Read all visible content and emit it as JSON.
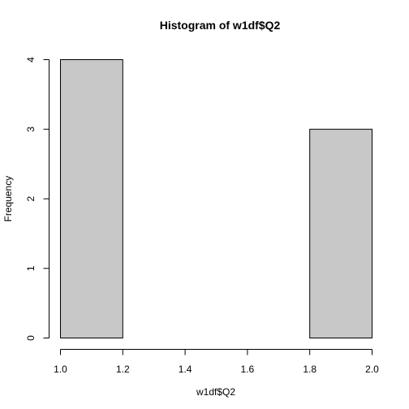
{
  "chart_data": {
    "type": "bar",
    "title": "Histogram of w1df$Q2",
    "xlabel": "w1df$Q2",
    "ylabel": "Frequency",
    "bins": [
      {
        "start": 1.0,
        "end": 1.2,
        "count": 4
      },
      {
        "start": 1.2,
        "end": 1.4,
        "count": 0
      },
      {
        "start": 1.4,
        "end": 1.6,
        "count": 0
      },
      {
        "start": 1.6,
        "end": 1.8,
        "count": 0
      },
      {
        "start": 1.8,
        "end": 2.0,
        "count": 3
      }
    ],
    "xlim": [
      1.0,
      2.0
    ],
    "ylim": [
      0,
      4
    ],
    "xticks": [
      "1.0",
      "1.2",
      "1.4",
      "1.6",
      "1.8",
      "2.0"
    ],
    "yticks": [
      "0",
      "1",
      "2",
      "3",
      "4"
    ],
    "bar_color": "#c8c8c8",
    "grid": false
  }
}
